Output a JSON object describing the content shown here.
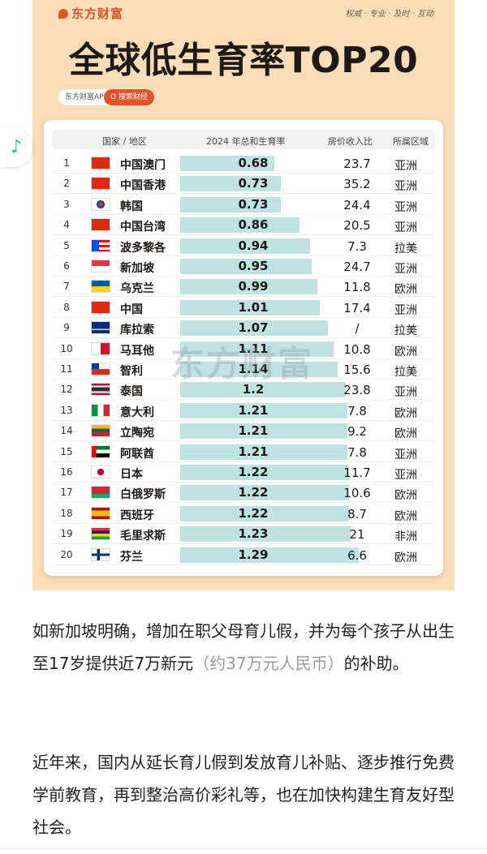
{
  "poster": {
    "brand": "东方财富",
    "slogan": "权威 · 专业 · 及时 · 互动",
    "title": "全球低生育率TOP20",
    "app_label": "东方财富APP",
    "search_label": "Q 搜索财经",
    "watermark": "东方财富",
    "colors": {
      "brand": "#e2532b",
      "poster_bg": "#f8ddb8",
      "bar": "#bfe3e3"
    }
  },
  "table": {
    "headers": {
      "country": "国家 / 地区",
      "tfr": "2024 年总和生育率",
      "ratio": "房价收入比",
      "region": "所属区域"
    },
    "rows": [
      {
        "rank": "1",
        "flag": "china-flag",
        "name": "中国澳门",
        "tfr": "0.68",
        "tfr_value": 0.68,
        "ratio": "23.7",
        "region": "亚洲"
      },
      {
        "rank": "2",
        "flag": "china-flag",
        "name": "中国香港",
        "tfr": "0.73",
        "tfr_value": 0.73,
        "ratio": "35.2",
        "region": "亚洲"
      },
      {
        "rank": "3",
        "flag": "korea-flag",
        "name": "韩国",
        "tfr": "0.73",
        "tfr_value": 0.73,
        "ratio": "24.4",
        "region": "亚洲"
      },
      {
        "rank": "4",
        "flag": "china-flag",
        "name": "中国台湾",
        "tfr": "0.86",
        "tfr_value": 0.86,
        "ratio": "20.5",
        "region": "亚洲"
      },
      {
        "rank": "5",
        "flag": "puerto-rico-flag",
        "name": "波多黎各",
        "tfr": "0.94",
        "tfr_value": 0.94,
        "ratio": "7.3",
        "region": "拉美"
      },
      {
        "rank": "6",
        "flag": "singapore-flag",
        "name": "新加坡",
        "tfr": "0.95",
        "tfr_value": 0.95,
        "ratio": "24.7",
        "region": "亚洲"
      },
      {
        "rank": "7",
        "flag": "ukraine-flag",
        "name": "乌克兰",
        "tfr": "0.99",
        "tfr_value": 0.99,
        "ratio": "11.8",
        "region": "欧洲"
      },
      {
        "rank": "8",
        "flag": "china-flag",
        "name": "中国",
        "tfr": "1.01",
        "tfr_value": 1.01,
        "ratio": "17.4",
        "region": "亚洲"
      },
      {
        "rank": "9",
        "flag": "curacao-flag",
        "name": "库拉索",
        "tfr": "1.07",
        "tfr_value": 1.07,
        "ratio": "/",
        "region": "拉美"
      },
      {
        "rank": "10",
        "flag": "malta-flag",
        "name": "马耳他",
        "tfr": "1.11",
        "tfr_value": 1.11,
        "ratio": "10.8",
        "region": "欧洲"
      },
      {
        "rank": "11",
        "flag": "chile-flag",
        "name": "智利",
        "tfr": "1.14",
        "tfr_value": 1.14,
        "ratio": "15.6",
        "region": "拉美"
      },
      {
        "rank": "12",
        "flag": "thailand-flag",
        "name": "泰国",
        "tfr": "1.2",
        "tfr_value": 1.2,
        "ratio": "23.8",
        "region": "亚洲"
      },
      {
        "rank": "13",
        "flag": "italy-flag",
        "name": "意大利",
        "tfr": "1.21",
        "tfr_value": 1.21,
        "ratio": "7.8",
        "region": "欧洲"
      },
      {
        "rank": "14",
        "flag": "lithuania-flag",
        "name": "立陶宛",
        "tfr": "1.21",
        "tfr_value": 1.21,
        "ratio": "9.2",
        "region": "欧洲"
      },
      {
        "rank": "15",
        "flag": "uae-flag",
        "name": "阿联酋",
        "tfr": "1.21",
        "tfr_value": 1.21,
        "ratio": "7.8",
        "region": "亚洲"
      },
      {
        "rank": "16",
        "flag": "japan-flag",
        "name": "日本",
        "tfr": "1.22",
        "tfr_value": 1.22,
        "ratio": "11.7",
        "region": "亚洲"
      },
      {
        "rank": "17",
        "flag": "belarus-flag",
        "name": "白俄罗斯",
        "tfr": "1.22",
        "tfr_value": 1.22,
        "ratio": "10.6",
        "region": "欧洲"
      },
      {
        "rank": "18",
        "flag": "spain-flag",
        "name": "西班牙",
        "tfr": "1.22",
        "tfr_value": 1.22,
        "ratio": "8.7",
        "region": "欧洲"
      },
      {
        "rank": "19",
        "flag": "mauritius-flag",
        "name": "毛里求斯",
        "tfr": "1.23",
        "tfr_value": 1.23,
        "ratio": "21",
        "region": "非洲"
      },
      {
        "rank": "20",
        "flag": "finland-flag",
        "name": "芬兰",
        "tfr": "1.29",
        "tfr_value": 1.29,
        "ratio": "6.6",
        "region": "欧洲"
      }
    ]
  },
  "article": {
    "p1_text": "如新加坡明确，增加在职父母育儿假，并为每个孩子从出生至17岁提供近7万新元",
    "p1_note": "（约37万元人民币）",
    "p1_tail": "的补助。",
    "p2_text": "近年来，国内从延长育儿假到发放育儿补贴、逐步推行免费学前教育，再到整治高价彩礼等，也在加快构建生育友好型社会。"
  },
  "float_button": {
    "icon": "music-note-icon",
    "glyph": "♪"
  }
}
